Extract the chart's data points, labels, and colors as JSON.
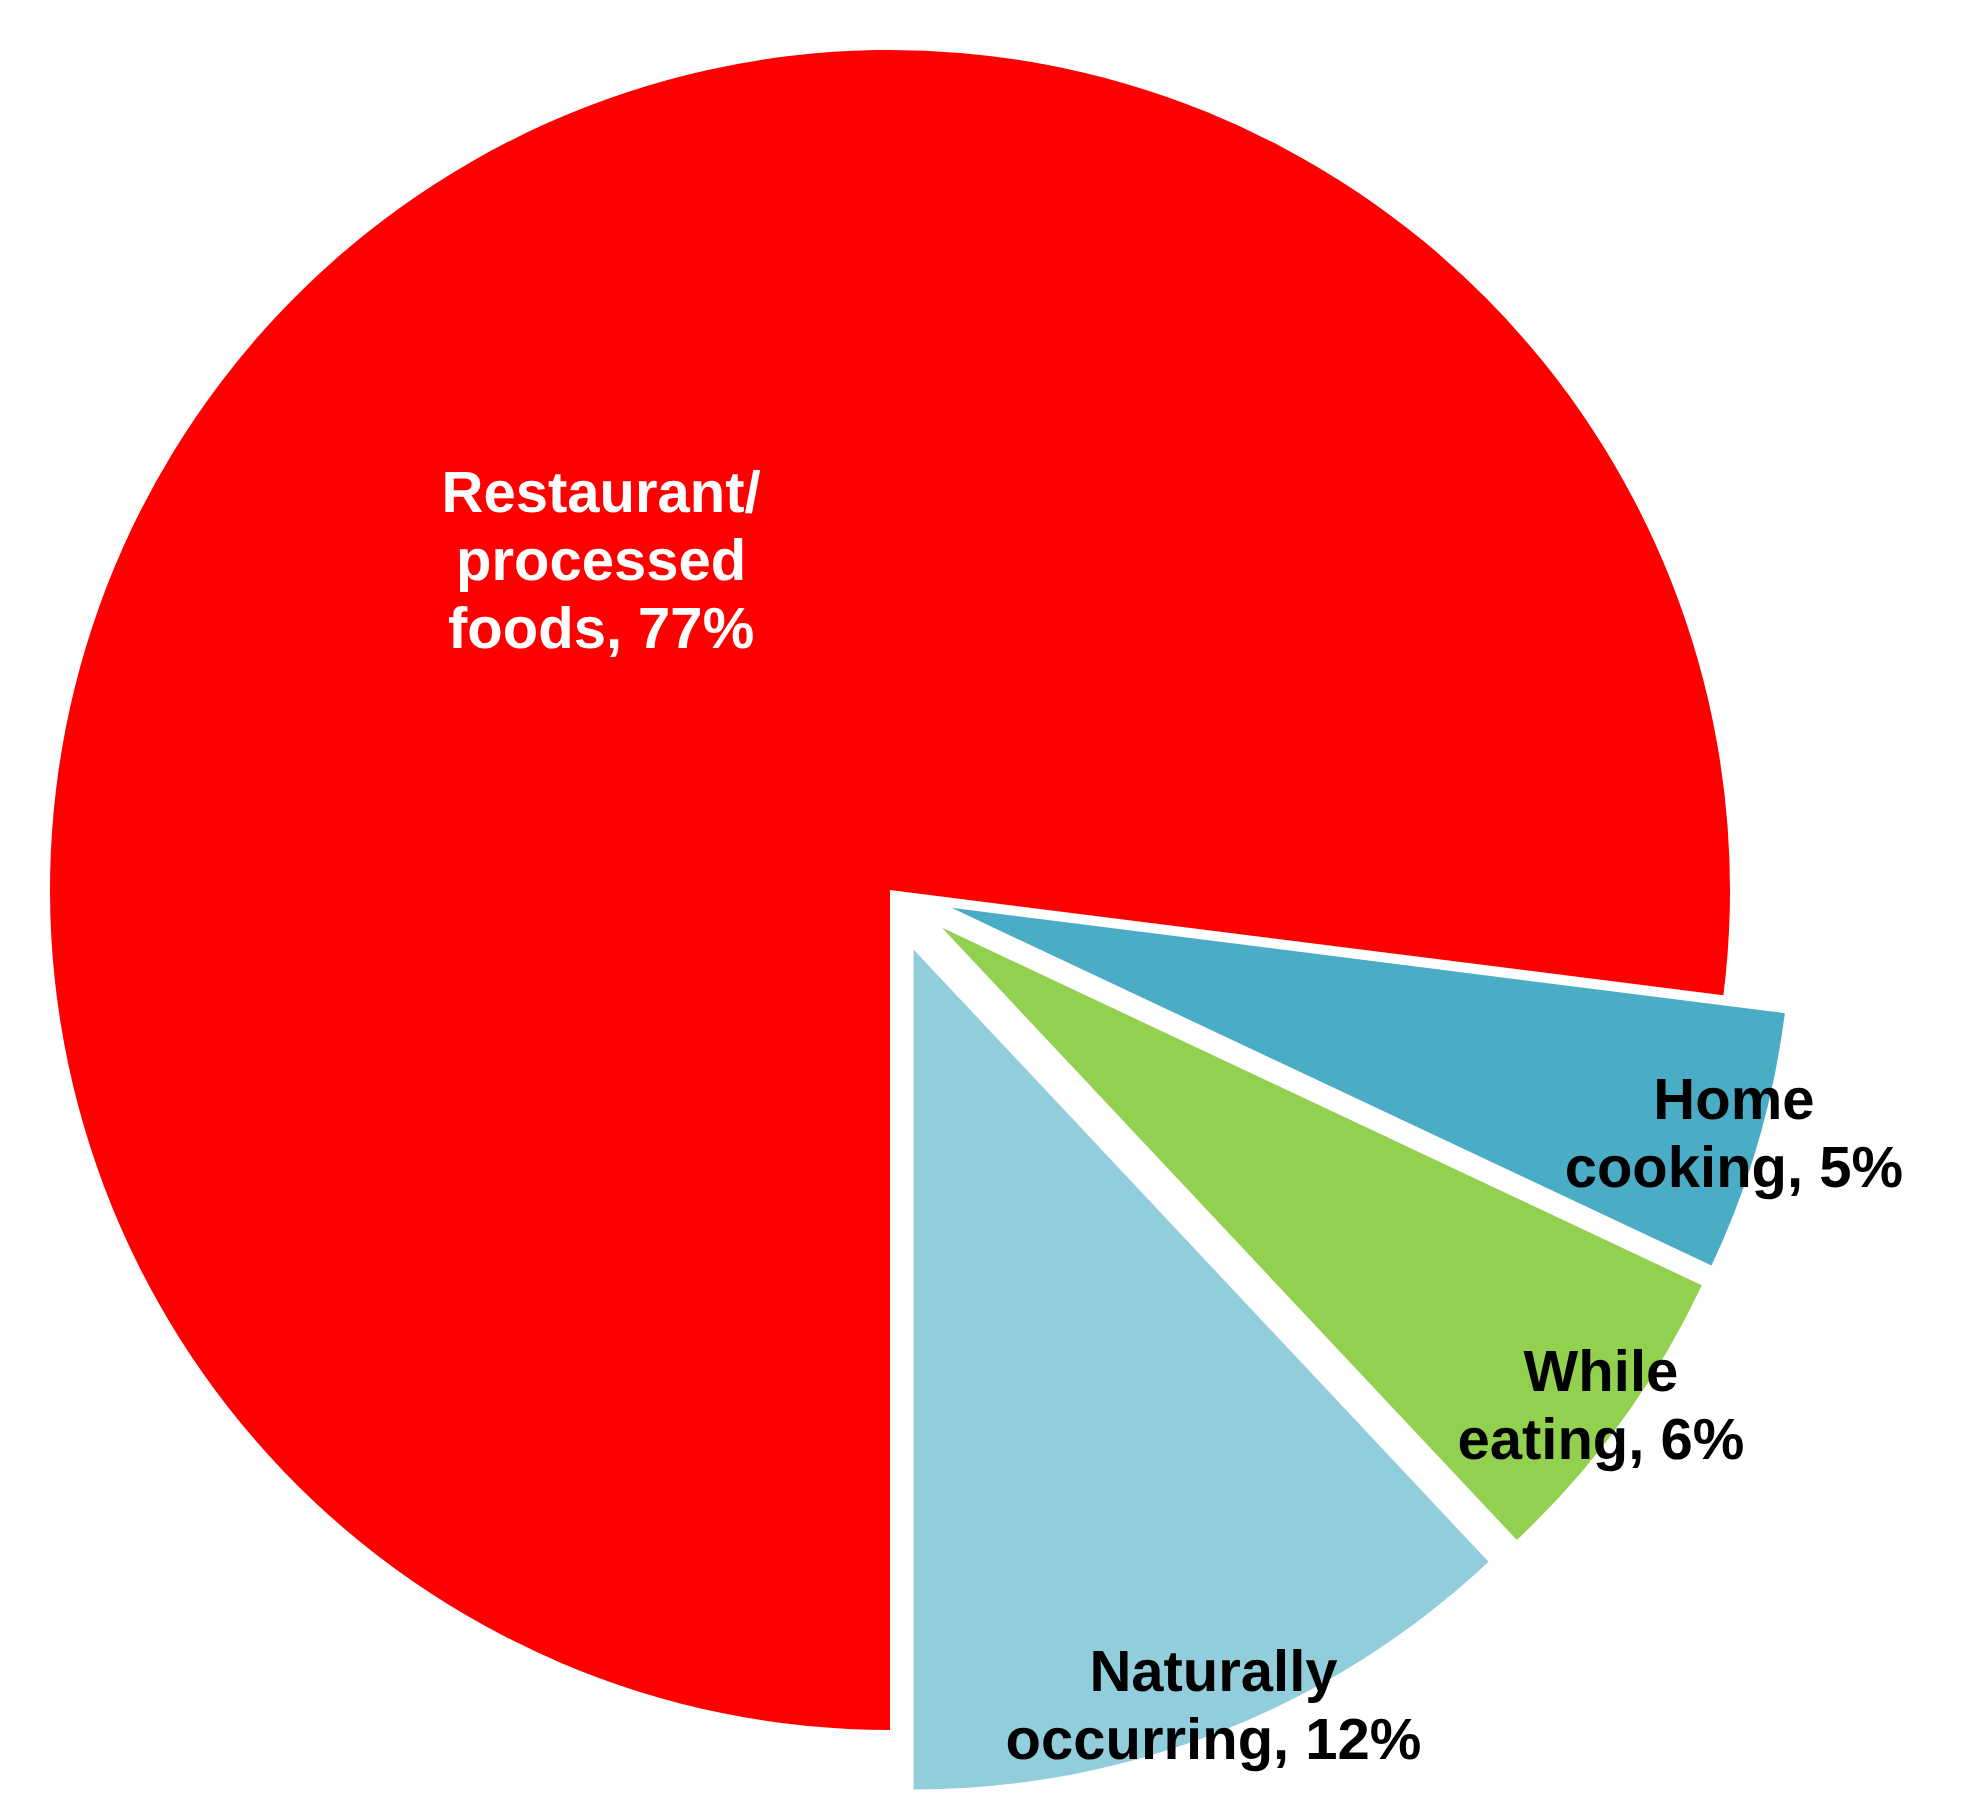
{
  "chart_data": {
    "type": "pie",
    "categories": [
      "Restaurant/processed foods",
      "Home cooking",
      "While eating",
      "Naturally occurring"
    ],
    "values": [
      77,
      5,
      6,
      12
    ],
    "value_labels": [
      "77%",
      "5%",
      "6%",
      "12%"
    ],
    "colors": [
      "#ff0000",
      "#4bacc6",
      "#92d050",
      "#92cddc"
    ],
    "legend": false
  }
}
